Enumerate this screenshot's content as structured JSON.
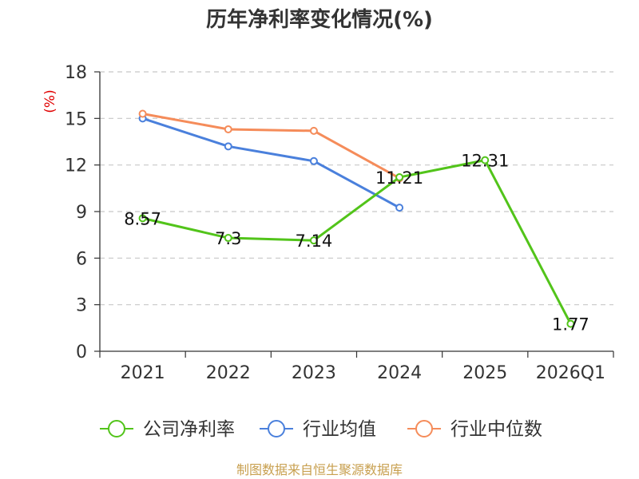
{
  "chart_data": {
    "type": "line",
    "title": "历年净利率变化情况(%)",
    "unit_label": "(%)",
    "categories": [
      "2021",
      "2022",
      "2023",
      "2024",
      "2025",
      "2026Q1"
    ],
    "ylim": [
      0,
      18
    ],
    "yticks": [
      0,
      3,
      6,
      9,
      12,
      15,
      18
    ],
    "grid": true,
    "legend_position": "bottom",
    "series": [
      {
        "name": "公司净利率",
        "color": "#52c41a",
        "values": [
          8.57,
          7.3,
          7.14,
          11.21,
          12.31,
          1.77
        ],
        "labels": [
          "8.57",
          "7.3",
          "7.14",
          "11.21",
          "12.31",
          "1.77"
        ]
      },
      {
        "name": "行业均值",
        "color": "#4a80dc",
        "values": [
          15.0,
          13.2,
          12.25,
          9.25,
          null,
          null
        ],
        "labels": []
      },
      {
        "name": "行业中位数",
        "color": "#f58c5a",
        "values": [
          15.3,
          14.3,
          14.2,
          11.15,
          null,
          null
        ],
        "labels": []
      }
    ]
  },
  "source": "制图数据来自恒生聚源数据库"
}
